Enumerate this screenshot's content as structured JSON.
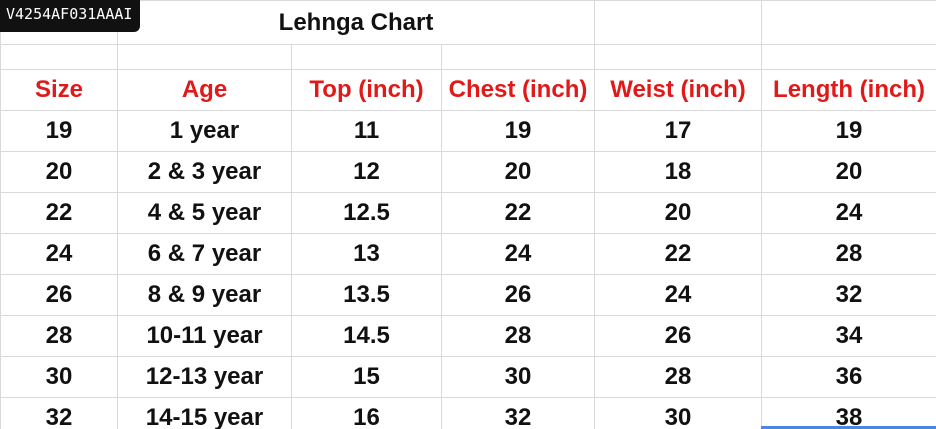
{
  "badge": {
    "text": "V4254AF031AAAI"
  },
  "title": "Lehnga Chart",
  "headers": [
    "Size",
    "Age",
    "Top (inch)",
    "Chest (inch)",
    "Weist (inch)",
    "Length (inch)"
  ],
  "rows": [
    [
      "19",
      "1 year",
      "11",
      "19",
      "17",
      "19"
    ],
    [
      "20",
      "2 & 3 year",
      "12",
      "20",
      "18",
      "20"
    ],
    [
      "22",
      "4 & 5 year",
      "12.5",
      "22",
      "20",
      "24"
    ],
    [
      "24",
      "6 & 7 year",
      "13",
      "24",
      "22",
      "28"
    ],
    [
      "26",
      "8 & 9 year",
      "13.5",
      "26",
      "24",
      "32"
    ],
    [
      "28",
      "10-11 year",
      "14.5",
      "28",
      "26",
      "34"
    ],
    [
      "30",
      "12-13 year",
      "15",
      "30",
      "28",
      "36"
    ],
    [
      "32",
      "14-15 year",
      "16",
      "32",
      "30",
      "38"
    ]
  ],
  "colors": {
    "header_text": "#e01919",
    "body_text": "#111111",
    "badge_bg": "#111111",
    "grid_line": "#d9d9d9",
    "selection_edge": "#4a86e8"
  }
}
